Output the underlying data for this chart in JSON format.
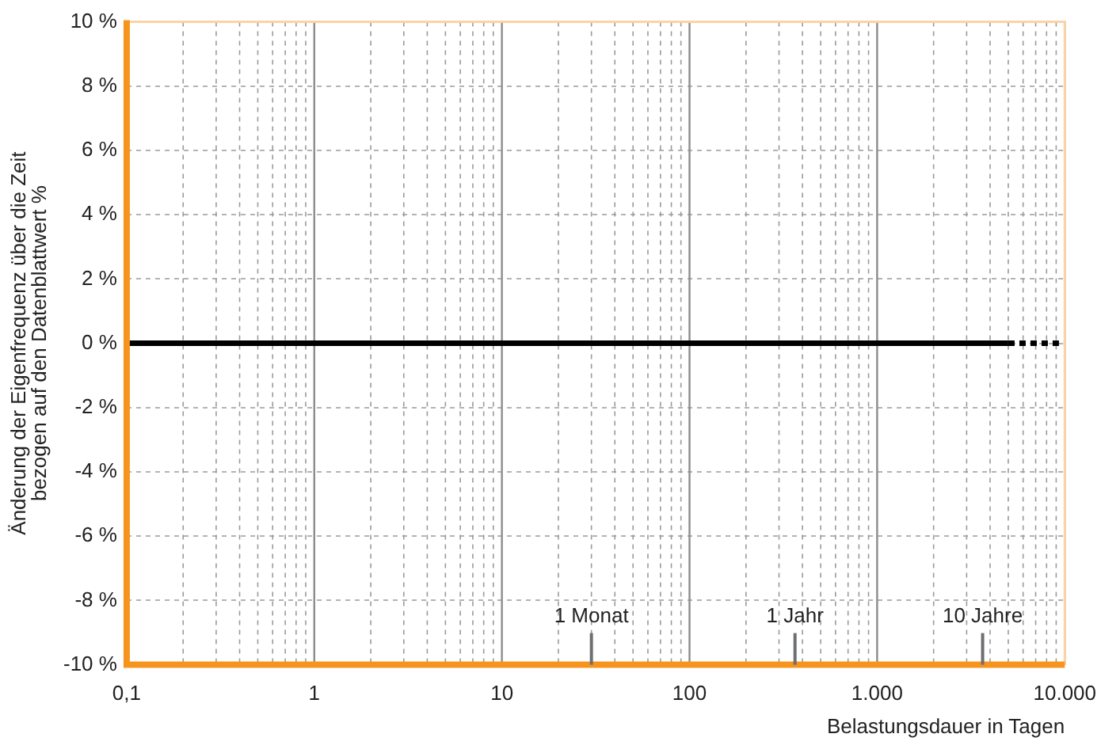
{
  "chart_data": {
    "type": "line",
    "xlabel": "Belastungsdauer in Tagen",
    "ylabel": "Änderung der Eigenfrequenz über die Zeit\nbezogen auf den Datenblattwert %",
    "log": "x",
    "xlim": [
      0.1,
      10000
    ],
    "ylim": [
      -10,
      10
    ],
    "xticks": [
      {
        "value": 0.1,
        "label": "0,1"
      },
      1,
      10,
      100,
      {
        "value": 1000,
        "label": "1.000"
      },
      {
        "value": 10000,
        "label": "10.000"
      }
    ],
    "yticks": [
      {
        "value": -10,
        "label": "-10 %"
      },
      {
        "value": -8,
        "label": "-8 %"
      },
      {
        "value": -6,
        "label": "-6 %"
      },
      {
        "value": -4,
        "label": "-4 %"
      },
      {
        "value": -2,
        "label": "-2 %"
      },
      {
        "value": 0,
        "label": "0 %"
      },
      {
        "value": 2,
        "label": "2 %"
      },
      {
        "value": 4,
        "label": "4 %"
      },
      {
        "value": 6,
        "label": "6 %"
      },
      {
        "value": 8,
        "label": "8 %"
      },
      {
        "value": 10,
        "label": "10 %"
      }
    ],
    "grid": true,
    "legend": false,
    "marker": "none",
    "series": [
      {
        "color": "#000000",
        "x": [
          0.1,
          5000
        ],
        "values": [
          0,
          0
        ],
        "line_style": "solid"
      },
      {
        "color": "#000000",
        "x": [
          5000,
          10000
        ],
        "values": [
          0,
          0
        ],
        "line_style": "dotted"
      }
    ],
    "ref_lines": [
      {
        "axis": "x",
        "value": 30,
        "label": "1 Monat"
      },
      {
        "axis": "x",
        "value": 365,
        "label": "1 Jahr"
      },
      {
        "axis": "x",
        "value": 3650,
        "label": "10 Jahre"
      }
    ]
  }
}
